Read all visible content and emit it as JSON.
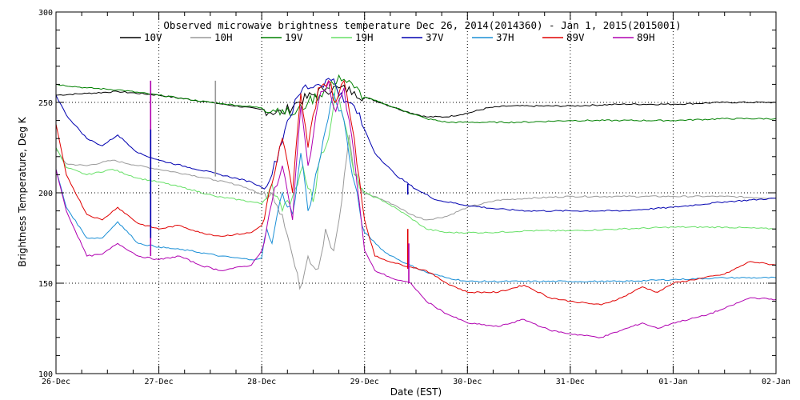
{
  "chart_data": {
    "type": "line",
    "title": "Observed microwave brightness temperature Dec 26, 2014(2014360) - Jan  1, 2015(2015001)",
    "xlabel": "Date (EST)",
    "ylabel": "Brightness Temperature, Deg K",
    "xlim": [
      0,
      7
    ],
    "ylim": [
      100,
      300
    ],
    "x_ticks": [
      {
        "x": 0,
        "label": "26-Dec"
      },
      {
        "x": 1,
        "label": "27-Dec"
      },
      {
        "x": 2,
        "label": "28-Dec"
      },
      {
        "x": 3,
        "label": "29-Dec"
      },
      {
        "x": 4,
        "label": "30-Dec"
      },
      {
        "x": 5,
        "label": "31-Dec"
      },
      {
        "x": 6,
        "label": "01-Jan"
      },
      {
        "x": 7,
        "label": "02-Jan"
      }
    ],
    "y_ticks": [
      100,
      150,
      200,
      250,
      300
    ],
    "grid": "dotted at major ticks",
    "legend": "top, single row",
    "series": [
      {
        "name": "10V",
        "color": "#000000",
        "points": [
          [
            0,
            254
          ],
          [
            0.3,
            255
          ],
          [
            0.6,
            256
          ],
          [
            1.0,
            254
          ],
          [
            1.5,
            250
          ],
          [
            2.0,
            246
          ],
          [
            2.2,
            244
          ],
          [
            2.35,
            250
          ],
          [
            2.6,
            257
          ],
          [
            2.75,
            258
          ],
          [
            2.9,
            256
          ],
          [
            3.0,
            253
          ],
          [
            3.2,
            249
          ],
          [
            3.4,
            245
          ],
          [
            3.6,
            242
          ],
          [
            3.8,
            242
          ],
          [
            4.0,
            244
          ],
          [
            4.2,
            247
          ],
          [
            4.4,
            248
          ],
          [
            4.6,
            248
          ],
          [
            5.0,
            248
          ],
          [
            5.5,
            249
          ],
          [
            6.0,
            249
          ],
          [
            6.5,
            250
          ],
          [
            7,
            250
          ]
        ]
      },
      {
        "name": "10H",
        "color": "#999999",
        "points": [
          [
            0,
            224
          ],
          [
            0.1,
            216
          ],
          [
            0.3,
            215
          ],
          [
            0.55,
            218
          ],
          [
            0.8,
            215
          ],
          [
            1.0,
            213
          ],
          [
            1.3,
            210
          ],
          [
            1.55,
            207
          ],
          [
            1.8,
            204
          ],
          [
            2.0,
            199
          ],
          [
            2.1,
            200
          ],
          [
            2.2,
            188
          ],
          [
            2.3,
            165
          ],
          [
            2.37,
            147
          ],
          [
            2.45,
            165
          ],
          [
            2.55,
            158
          ],
          [
            2.62,
            180
          ],
          [
            2.7,
            168
          ],
          [
            2.78,
            196
          ],
          [
            2.85,
            232
          ],
          [
            2.9,
            210
          ],
          [
            2.98,
            200
          ],
          [
            3.1,
            198
          ],
          [
            3.3,
            193
          ],
          [
            3.45,
            188
          ],
          [
            3.6,
            185
          ],
          [
            3.8,
            187
          ],
          [
            4.0,
            192
          ],
          [
            4.3,
            196
          ],
          [
            4.6,
            197
          ],
          [
            5.0,
            198
          ],
          [
            5.5,
            198
          ],
          [
            6.0,
            198
          ],
          [
            6.5,
            198
          ],
          [
            7,
            197
          ]
        ]
      },
      {
        "name": "19V",
        "color": "#008000",
        "points": [
          [
            0,
            260
          ],
          [
            0.3,
            258
          ],
          [
            0.6,
            257
          ],
          [
            1.0,
            254
          ],
          [
            1.5,
            250
          ],
          [
            2.0,
            247
          ],
          [
            2.2,
            246
          ],
          [
            2.3,
            243
          ],
          [
            2.45,
            250
          ],
          [
            2.7,
            260
          ],
          [
            2.75,
            265
          ],
          [
            2.9,
            258
          ],
          [
            3.0,
            253
          ],
          [
            3.2,
            249
          ],
          [
            3.4,
            245
          ],
          [
            3.6,
            241
          ],
          [
            3.8,
            239
          ],
          [
            4.0,
            239
          ],
          [
            4.5,
            239
          ],
          [
            5.0,
            240
          ],
          [
            5.5,
            240
          ],
          [
            6.0,
            240
          ],
          [
            6.5,
            241
          ],
          [
            7,
            241
          ]
        ]
      },
      {
        "name": "19H",
        "color": "#66e066",
        "points": [
          [
            0,
            225
          ],
          [
            0.1,
            214
          ],
          [
            0.3,
            210
          ],
          [
            0.55,
            213
          ],
          [
            0.8,
            208
          ],
          [
            1.0,
            206
          ],
          [
            1.3,
            202
          ],
          [
            1.55,
            198
          ],
          [
            1.8,
            196
          ],
          [
            2.0,
            194
          ],
          [
            2.1,
            205
          ],
          [
            2.2,
            190
          ],
          [
            2.3,
            198
          ],
          [
            2.4,
            215
          ],
          [
            2.5,
            195
          ],
          [
            2.58,
            222
          ],
          [
            2.65,
            230
          ],
          [
            2.72,
            260
          ],
          [
            2.8,
            240
          ],
          [
            2.9,
            210
          ],
          [
            3.0,
            200
          ],
          [
            3.2,
            195
          ],
          [
            3.4,
            188
          ],
          [
            3.6,
            180
          ],
          [
            3.8,
            178
          ],
          [
            4.2,
            178
          ],
          [
            4.6,
            179
          ],
          [
            5.0,
            179
          ],
          [
            5.5,
            180
          ],
          [
            6.0,
            181
          ],
          [
            6.5,
            181
          ],
          [
            7,
            180
          ]
        ]
      },
      {
        "name": "37V",
        "color": "#0000b0",
        "points": [
          [
            0,
            254
          ],
          [
            0.1,
            243
          ],
          [
            0.3,
            230
          ],
          [
            0.45,
            226
          ],
          [
            0.6,
            232
          ],
          [
            0.8,
            222
          ],
          [
            1.0,
            218
          ],
          [
            1.3,
            214
          ],
          [
            1.6,
            210
          ],
          [
            1.9,
            206
          ],
          [
            2.0,
            203
          ],
          [
            2.1,
            210
          ],
          [
            2.25,
            240
          ],
          [
            2.4,
            258
          ],
          [
            2.55,
            260
          ],
          [
            2.7,
            263
          ],
          [
            2.8,
            250
          ],
          [
            2.9,
            248
          ],
          [
            3.0,
            235
          ],
          [
            3.1,
            222
          ],
          [
            3.3,
            210
          ],
          [
            3.5,
            202
          ],
          [
            3.7,
            196
          ],
          [
            4.0,
            193
          ],
          [
            4.3,
            191
          ],
          [
            4.6,
            190
          ],
          [
            5.0,
            190
          ],
          [
            5.5,
            190
          ],
          [
            6.0,
            192
          ],
          [
            6.5,
            195
          ],
          [
            7,
            197
          ]
        ]
      },
      {
        "name": "37H",
        "color": "#1a8fd6",
        "points": [
          [
            0,
            213
          ],
          [
            0.1,
            192
          ],
          [
            0.3,
            175
          ],
          [
            0.45,
            175
          ],
          [
            0.6,
            184
          ],
          [
            0.8,
            172
          ],
          [
            1.0,
            170
          ],
          [
            1.3,
            168
          ],
          [
            1.6,
            165
          ],
          [
            1.9,
            163
          ],
          [
            2.0,
            164
          ],
          [
            2.05,
            180
          ],
          [
            2.1,
            172
          ],
          [
            2.2,
            200
          ],
          [
            2.3,
            188
          ],
          [
            2.38,
            222
          ],
          [
            2.45,
            190
          ],
          [
            2.55,
            215
          ],
          [
            2.62,
            235
          ],
          [
            2.7,
            255
          ],
          [
            2.8,
            240
          ],
          [
            2.88,
            210
          ],
          [
            3.0,
            178
          ],
          [
            3.2,
            167
          ],
          [
            3.4,
            161
          ],
          [
            3.6,
            156
          ],
          [
            3.8,
            153
          ],
          [
            4.0,
            151
          ],
          [
            4.5,
            151
          ],
          [
            5.0,
            151
          ],
          [
            5.5,
            151
          ],
          [
            6.0,
            152
          ],
          [
            6.5,
            153
          ],
          [
            7,
            153
          ]
        ]
      },
      {
        "name": "89V",
        "color": "#e00000",
        "points": [
          [
            0,
            238
          ],
          [
            0.1,
            210
          ],
          [
            0.3,
            188
          ],
          [
            0.45,
            185
          ],
          [
            0.6,
            192
          ],
          [
            0.8,
            183
          ],
          [
            1.0,
            180
          ],
          [
            1.2,
            182
          ],
          [
            1.4,
            178
          ],
          [
            1.6,
            176
          ],
          [
            1.9,
            178
          ],
          [
            2.0,
            182
          ],
          [
            2.1,
            205
          ],
          [
            2.2,
            230
          ],
          [
            2.3,
            200
          ],
          [
            2.38,
            255
          ],
          [
            2.45,
            225
          ],
          [
            2.55,
            258
          ],
          [
            2.65,
            262
          ],
          [
            2.72,
            250
          ],
          [
            2.8,
            262
          ],
          [
            2.9,
            230
          ],
          [
            3.0,
            185
          ],
          [
            3.1,
            165
          ],
          [
            3.3,
            161
          ],
          [
            3.45,
            159
          ],
          [
            3.6,
            157
          ],
          [
            3.8,
            150
          ],
          [
            4.0,
            145
          ],
          [
            4.3,
            145
          ],
          [
            4.55,
            149
          ],
          [
            4.8,
            142
          ],
          [
            5.0,
            140
          ],
          [
            5.3,
            138
          ],
          [
            5.5,
            142
          ],
          [
            5.7,
            148
          ],
          [
            5.85,
            145
          ],
          [
            6.0,
            150
          ],
          [
            6.3,
            153
          ],
          [
            6.5,
            155
          ],
          [
            6.75,
            162
          ],
          [
            7,
            160
          ]
        ]
      },
      {
        "name": "89H",
        "color": "#b000b0",
        "points": [
          [
            0,
            213
          ],
          [
            0.1,
            190
          ],
          [
            0.3,
            165
          ],
          [
            0.45,
            166
          ],
          [
            0.6,
            172
          ],
          [
            0.8,
            165
          ],
          [
            1.0,
            163
          ],
          [
            1.2,
            165
          ],
          [
            1.4,
            160
          ],
          [
            1.6,
            157
          ],
          [
            1.9,
            160
          ],
          [
            2.0,
            168
          ],
          [
            2.1,
            195
          ],
          [
            2.2,
            215
          ],
          [
            2.3,
            185
          ],
          [
            2.38,
            248
          ],
          [
            2.45,
            215
          ],
          [
            2.55,
            250
          ],
          [
            2.65,
            262
          ],
          [
            2.72,
            245
          ],
          [
            2.8,
            258
          ],
          [
            2.9,
            220
          ],
          [
            3.0,
            168
          ],
          [
            3.1,
            157
          ],
          [
            3.3,
            152
          ],
          [
            3.45,
            150
          ],
          [
            3.6,
            140
          ],
          [
            3.8,
            133
          ],
          [
            4.0,
            128
          ],
          [
            4.3,
            126
          ],
          [
            4.55,
            130
          ],
          [
            4.8,
            124
          ],
          [
            5.0,
            122
          ],
          [
            5.3,
            120
          ],
          [
            5.5,
            124
          ],
          [
            5.7,
            128
          ],
          [
            5.85,
            125
          ],
          [
            6.0,
            128
          ],
          [
            6.3,
            132
          ],
          [
            6.5,
            136
          ],
          [
            6.75,
            142
          ],
          [
            7,
            141
          ]
        ]
      }
    ],
    "spikes": [
      {
        "series": "89H",
        "x": 0.92,
        "base": 165,
        "peak": 262
      },
      {
        "series": "37V",
        "x": 0.92,
        "base": 175,
        "peak": 235
      },
      {
        "series": "10H",
        "x": 1.55,
        "base": 209,
        "peak": 262
      },
      {
        "series": "89V",
        "x": 3.42,
        "base": 158,
        "peak": 180
      },
      {
        "series": "89H",
        "x": 3.43,
        "base": 150,
        "peak": 172
      },
      {
        "series": "37V",
        "x": 3.42,
        "base": 199,
        "peak": 205
      }
    ]
  }
}
